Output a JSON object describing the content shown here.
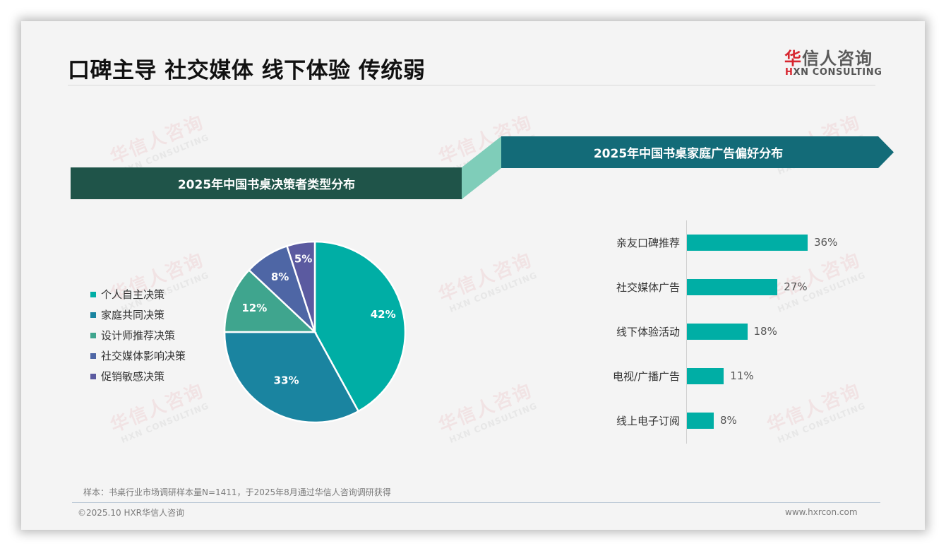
{
  "header": {
    "title": "口碑主导 社交媒体 线下体验 传统弱",
    "logo_cn_first": "华",
    "logo_cn_rest": "信人咨询",
    "logo_en_first": "H",
    "logo_en_rest": "XN CONSULTING"
  },
  "watermark": {
    "cn": "华信人咨询",
    "en": "HXN CONSULTING"
  },
  "left_panel": {
    "banner": "2025年中国书桌决策者类型分布"
  },
  "right_panel": {
    "banner": "2025年中国书桌家庭广告偏好分布"
  },
  "colors": {
    "banner_left": "#1f5449",
    "banner_connector": "#7fcdb9",
    "banner_right": "#136b78",
    "bar": "#00aea5",
    "brand_red": "#d7262f"
  },
  "chart_data": [
    {
      "type": "pie",
      "title": "2025年中国书桌决策者类型分布",
      "categories": [
        "个人自主决策",
        "家庭共同决策",
        "设计师推荐决策",
        "社交媒体影响决策",
        "促销敏感决策"
      ],
      "values": [
        42,
        33,
        12,
        8,
        5
      ],
      "labels": [
        "42%",
        "33%",
        "12%",
        "8%",
        "5%"
      ],
      "colors": [
        "#00aea5",
        "#1a84a0",
        "#3fa58e",
        "#4e66a5",
        "#5b5aa0"
      ],
      "legend_position": "left",
      "start_angle_deg": 0,
      "direction": "clockwise"
    },
    {
      "type": "bar",
      "orientation": "horizontal",
      "title": "2025年中国书桌家庭广告偏好分布",
      "categories": [
        "亲友口碑推荐",
        "社交媒体广告",
        "线下体验活动",
        "电视/广播广告",
        "线上电子订阅"
      ],
      "values": [
        36,
        27,
        18,
        11,
        8
      ],
      "labels": [
        "36%",
        "27%",
        "18%",
        "11%",
        "8%"
      ],
      "unit": "%",
      "grid": false,
      "color": "#00aea5"
    }
  ],
  "footer": {
    "note": "样本：书桌行业市场调研样本量N=1411，于2025年8月通过华信人咨询调研获得",
    "copyright": "©2025.10 HXR华信人咨询",
    "website": "www.hxrcon.com"
  }
}
